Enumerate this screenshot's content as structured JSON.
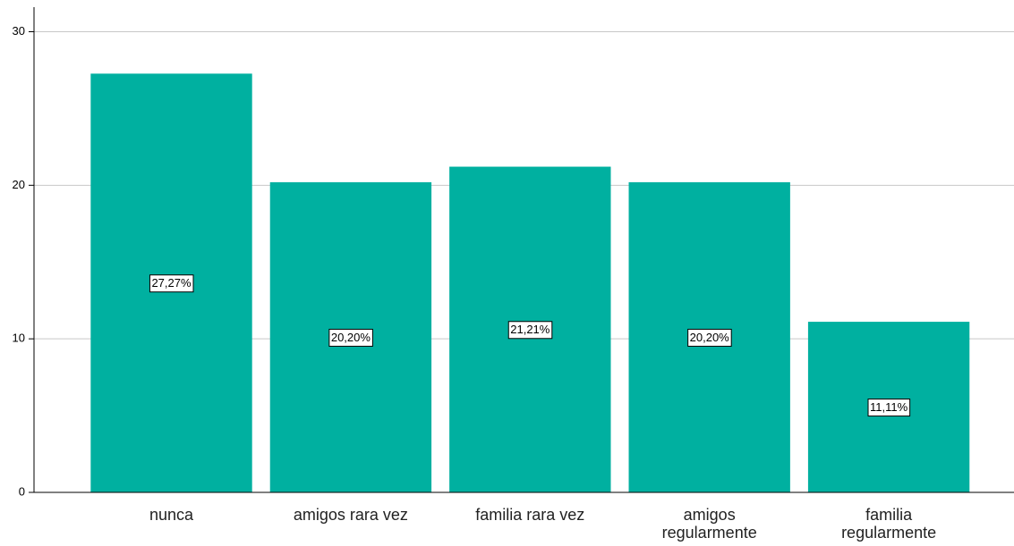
{
  "chart_data": {
    "type": "bar",
    "categories": [
      "nunca",
      "amigos rara vez",
      "familia rara vez",
      "amigos\nregularmente",
      "familia\nregularmente"
    ],
    "values": [
      27.27,
      20.2,
      21.21,
      20.2,
      11.11
    ],
    "value_labels": [
      "27,27%",
      "20,20%",
      "21,21%",
      "20,20%",
      "11,11%"
    ],
    "color": "#00b0a0",
    "ylim": [
      0,
      31.6
    ],
    "yticks": [
      0,
      10,
      20,
      30
    ],
    "grid": true
  }
}
